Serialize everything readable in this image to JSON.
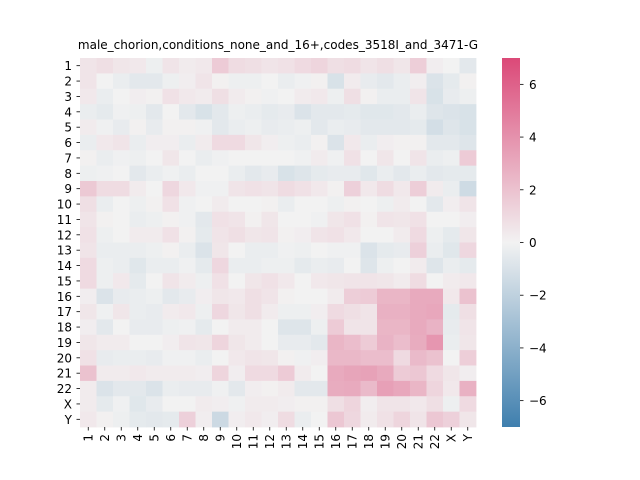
{
  "chart_data": {
    "type": "heatmap",
    "title": "male_chorion,conditions_none_and_16+,codes_3518I_and_3471-G",
    "xlabel": "",
    "ylabel": "",
    "x_categories": [
      "1",
      "2",
      "3",
      "4",
      "5",
      "6",
      "7",
      "8",
      "9",
      "10",
      "11",
      "12",
      "13",
      "14",
      "15",
      "16",
      "17",
      "18",
      "19",
      "20",
      "21",
      "22",
      "X",
      "Y"
    ],
    "y_categories": [
      "1",
      "2",
      "3",
      "4",
      "5",
      "6",
      "7",
      "8",
      "9",
      "10",
      "11",
      "12",
      "13",
      "14",
      "15",
      "16",
      "17",
      "18",
      "19",
      "20",
      "21",
      "22",
      "X",
      "Y"
    ],
    "colorbar": {
      "min": -7,
      "max": 7,
      "ticks": [
        -6,
        -4,
        -2,
        0,
        2,
        4,
        6
      ],
      "tick_labels": [
        "−6",
        "−4",
        "−2",
        "0",
        "2",
        "4",
        "6"
      ],
      "colors": {
        "low": "#3f7fae",
        "mid": "#f2f2f2",
        "high": "#db4978"
      }
    },
    "values": [
      [
        0.6,
        0.8,
        0.5,
        0.4,
        -0.2,
        0.6,
        0.3,
        0.4,
        1.6,
        0.9,
        0.8,
        0.6,
        0.7,
        1.0,
        1.2,
        0.8,
        0.9,
        0.6,
        0.8,
        0.5,
        1.5,
        0.2,
        0.0,
        -0.6
      ],
      [
        0.6,
        0.0,
        -0.3,
        -0.6,
        -0.6,
        -0.2,
        0.2,
        0.6,
        0.1,
        -0.2,
        -0.2,
        0.0,
        -0.3,
        -0.1,
        0.1,
        -1.0,
        0.3,
        -0.4,
        -0.6,
        -0.3,
        0.2,
        -0.9,
        -0.5,
        0.1
      ],
      [
        0.4,
        -0.3,
        0.0,
        0.2,
        0.1,
        0.7,
        0.4,
        0.3,
        0.8,
        0.3,
        0.1,
        -0.1,
        0.0,
        0.3,
        0.4,
        -0.2,
        0.8,
        0.1,
        -0.3,
        -0.3,
        0.6,
        -1.0,
        -0.4,
        -0.2
      ],
      [
        -0.3,
        -0.5,
        -0.1,
        -0.2,
        -0.6,
        0.0,
        -0.6,
        -1.0,
        -0.6,
        -0.2,
        -0.3,
        -0.5,
        -0.4,
        -0.9,
        -0.6,
        -0.6,
        -0.5,
        -0.7,
        -0.7,
        -0.6,
        -0.3,
        -0.8,
        -0.9,
        -1.0
      ],
      [
        0.3,
        -0.1,
        -0.4,
        0.1,
        -0.4,
        0.1,
        0.1,
        -0.1,
        -0.6,
        -0.3,
        -0.2,
        -0.4,
        -0.3,
        -0.2,
        -0.6,
        -0.3,
        -0.4,
        -0.6,
        -0.6,
        -0.6,
        -0.5,
        -1.2,
        -0.8,
        -1.0
      ],
      [
        -0.3,
        0.4,
        0.6,
        -0.3,
        0.2,
        0.2,
        -0.3,
        0.3,
        1.0,
        1.0,
        0.5,
        0.2,
        -0.2,
        -0.3,
        0.1,
        -0.9,
        0.4,
        -0.3,
        0.2,
        0.1,
        0.1,
        -0.6,
        -0.6,
        -0.8
      ],
      [
        0.1,
        -0.3,
        -0.1,
        -0.2,
        0.0,
        0.5,
        0.0,
        -0.3,
        -0.1,
        0.0,
        0.0,
        0.0,
        0.0,
        -0.1,
        0.3,
        -0.1,
        0.7,
        0.0,
        0.5,
        0.0,
        0.6,
        -0.3,
        -0.2,
        1.6
      ],
      [
        -0.2,
        -0.1,
        0.0,
        -0.6,
        -0.3,
        -0.1,
        -0.3,
        0.0,
        0.0,
        -0.3,
        -0.6,
        -0.4,
        -1.0,
        -0.8,
        -0.5,
        -0.4,
        -0.4,
        -0.7,
        -0.3,
        -0.6,
        -0.3,
        -0.6,
        -0.5,
        -0.5
      ],
      [
        1.7,
        0.9,
        0.9,
        0.3,
        0.0,
        1.1,
        0.4,
        -0.1,
        -0.1,
        0.6,
        0.7,
        0.6,
        0.9,
        0.7,
        0.4,
        0.1,
        1.4,
        0.4,
        0.9,
        0.4,
        1.5,
        0.3,
        -0.3,
        -1.4
      ],
      [
        0.8,
        -0.3,
        0.0,
        -0.2,
        0.1,
        0.7,
        -0.1,
        0.0,
        0.3,
        0.0,
        0.0,
        0.1,
        -0.3,
        0.0,
        0.0,
        -0.2,
        0.1,
        0.0,
        -0.2,
        0.3,
        0.0,
        -0.6,
        0.2,
        0.6
      ],
      [
        0.6,
        0.1,
        0.0,
        -0.3,
        -0.2,
        0.1,
        -0.1,
        -0.6,
        0.7,
        0.6,
        0.1,
        0.5,
        0.0,
        0.0,
        -0.1,
        0.5,
        0.7,
        0.1,
        0.6,
        0.5,
        0.7,
        0.0,
        0.0,
        0.2
      ],
      [
        0.7,
        -0.2,
        0.0,
        0.3,
        0.3,
        0.7,
        0.1,
        -0.5,
        0.6,
        0.8,
        0.5,
        0.6,
        0.1,
        0.2,
        0.6,
        0.7,
        0.4,
        0.0,
        0.0,
        0.3,
        1.0,
        -0.2,
        -0.5,
        0.5
      ],
      [
        0.6,
        -0.3,
        -0.3,
        -0.3,
        -0.2,
        0.1,
        -0.3,
        -0.9,
        0.5,
        0.0,
        -0.3,
        -0.3,
        -0.1,
        -0.2,
        0.0,
        -0.1,
        -0.1,
        -0.9,
        -0.5,
        -0.4,
        1.4,
        -0.3,
        -0.7,
        1.1
      ],
      [
        1.0,
        -0.2,
        -0.3,
        -0.7,
        -0.3,
        -0.3,
        -0.1,
        -0.5,
        1.1,
        -0.3,
        -0.3,
        -0.2,
        -0.2,
        -0.5,
        -0.3,
        -0.4,
        0.0,
        -0.8,
        -0.2,
        0.0,
        0.3,
        -0.8,
        -0.3,
        -0.5
      ],
      [
        1.0,
        -0.2,
        0.4,
        -0.5,
        0.0,
        0.6,
        0.3,
        -0.2,
        0.7,
        0.0,
        0.5,
        0.7,
        0.4,
        0.0,
        0.4,
        0.5,
        0.6,
        0.6,
        0.5,
        0.3,
        0.9,
        0.0,
        0.3,
        0.4
      ],
      [
        0.2,
        -0.9,
        -0.4,
        -0.3,
        -0.2,
        -0.6,
        -0.4,
        0.2,
        0.5,
        0.4,
        0.8,
        0.6,
        0.1,
        0.0,
        0.0,
        0.3,
        1.5,
        1.6,
        2.5,
        2.5,
        3.0,
        3.0,
        0.4,
        2.0
      ],
      [
        0.5,
        -0.1,
        0.5,
        -0.3,
        -0.4,
        0.3,
        0.4,
        -0.2,
        1.1,
        0.5,
        0.8,
        0.3,
        -0.2,
        -0.2,
        0.2,
        1.0,
        0.8,
        0.6,
        2.7,
        2.7,
        3.0,
        3.1,
        -0.5,
        0.8
      ],
      [
        0.2,
        -0.6,
        0.0,
        -0.4,
        -0.4,
        -0.2,
        -0.1,
        -0.5,
        0.0,
        0.3,
        0.3,
        0.0,
        -0.8,
        -0.8,
        -0.2,
        1.6,
        0.6,
        0.6,
        2.5,
        2.5,
        3.0,
        2.6,
        -0.4,
        0.6
      ],
      [
        0.5,
        0.3,
        0.3,
        0.0,
        0.0,
        0.2,
        0.6,
        0.5,
        1.2,
        0.5,
        0.3,
        0.0,
        -0.4,
        -0.4,
        -0.6,
        2.5,
        2.2,
        1.6,
        2.6,
        2.2,
        2.9,
        3.8,
        -0.3,
        0.5
      ],
      [
        0.7,
        -0.4,
        -0.3,
        -0.3,
        -0.4,
        -0.1,
        -0.1,
        -0.3,
        0.0,
        0.4,
        0.6,
        0.5,
        0.1,
        -0.1,
        0.2,
        2.4,
        2.4,
        2.2,
        2.2,
        1.0,
        2.3,
        2.0,
        0.0,
        1.5
      ],
      [
        2.0,
        0.3,
        0.3,
        0.4,
        0.3,
        0.3,
        0.3,
        0.2,
        1.2,
        0.2,
        1.0,
        1.0,
        1.6,
        0.3,
        0.0,
        3.0,
        3.2,
        3.3,
        3.0,
        1.6,
        1.8,
        1.0,
        0.5,
        0.2
      ],
      [
        0.3,
        -0.9,
        -0.6,
        -0.6,
        -0.9,
        -0.3,
        -0.4,
        -0.4,
        -0.1,
        -0.6,
        0.2,
        0.1,
        0.3,
        -0.6,
        -0.6,
        2.9,
        3.0,
        2.3,
        3.4,
        3.1,
        2.5,
        1.2,
        0.4,
        2.7
      ],
      [
        0.3,
        -0.5,
        -0.1,
        -0.7,
        -0.4,
        0.0,
        0.0,
        0.3,
        0.2,
        -0.1,
        0.3,
        0.3,
        0.2,
        0.1,
        0.1,
        0.8,
        1.2,
        0.2,
        0.6,
        0.6,
        0.4,
        0.8,
        -0.2,
        1.0
      ],
      [
        0.4,
        0.1,
        -0.2,
        -0.5,
        -0.6,
        -0.5,
        1.4,
        0.2,
        -1.5,
        0.2,
        0.4,
        0.2,
        0.9,
        -0.3,
        0.0,
        1.8,
        1.1,
        0.3,
        0.7,
        1.2,
        0.6,
        1.8,
        1.4,
        0.5
      ]
    ]
  }
}
